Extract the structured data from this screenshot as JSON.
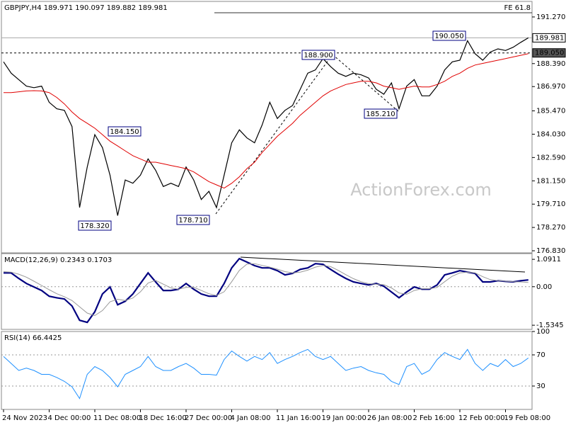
{
  "chart_data": [
    {
      "type": "line",
      "title": "GBPJPY,H4 189.971 190.097 189.882 189.981",
      "watermark": "ActionForex.com",
      "ylim": [
        176.7,
        192.23
      ],
      "yticks": [
        {
          "value": 191.27,
          "label": "191.270"
        },
        {
          "value": 188.39,
          "label": "188.390"
        },
        {
          "value": 186.97,
          "label": "186.970"
        },
        {
          "value": 185.47,
          "label": "185.470"
        },
        {
          "value": 184.03,
          "label": "184.030"
        },
        {
          "value": 182.59,
          "label": "182.590"
        },
        {
          "value": 181.15,
          "label": "181.150"
        },
        {
          "value": 179.71,
          "label": "179.710"
        },
        {
          "value": 178.27,
          "label": "178.270"
        },
        {
          "value": 176.83,
          "label": "176.830"
        }
      ],
      "series": [
        {
          "color": "#000000",
          "values": [
            188.5,
            187.8,
            187.4,
            187.0,
            186.9,
            187.0,
            186.0,
            185.6,
            185.5,
            184.5,
            179.5,
            182.0,
            184.0,
            183.2,
            181.5,
            179.0,
            181.2,
            181.0,
            181.5,
            182.5,
            181.8,
            180.8,
            181.0,
            180.8,
            182.0,
            181.2,
            180.0,
            180.5,
            179.5,
            181.5,
            183.5,
            184.3,
            183.8,
            183.5,
            184.6,
            186.0,
            185.0,
            185.5,
            185.8,
            186.8,
            187.8,
            188.0,
            188.7,
            188.2,
            187.8,
            187.6,
            187.8,
            187.7,
            187.5,
            186.8,
            186.5,
            187.2,
            185.6,
            187.0,
            187.4,
            186.4,
            186.4,
            187.0,
            188.0,
            188.5,
            188.6,
            189.8,
            189.0,
            188.6,
            189.1,
            189.3,
            189.2,
            189.4,
            189.7,
            189.98
          ]
        },
        {
          "color": "#e00000",
          "values": [
            186.6,
            186.6,
            186.65,
            186.7,
            186.72,
            186.7,
            186.6,
            186.3,
            185.9,
            185.4,
            185.0,
            184.7,
            184.4,
            184.0,
            183.6,
            183.3,
            183.0,
            182.7,
            182.5,
            182.3,
            182.3,
            182.2,
            182.1,
            182.0,
            181.9,
            181.7,
            181.4,
            181.1,
            180.9,
            180.7,
            181.0,
            181.4,
            181.9,
            182.3,
            182.9,
            183.4,
            183.9,
            184.3,
            184.7,
            185.2,
            185.6,
            186.0,
            186.4,
            186.7,
            186.9,
            187.1,
            187.2,
            187.3,
            187.3,
            187.2,
            187.0,
            186.9,
            186.8,
            186.9,
            187.0,
            186.95,
            186.95,
            187.1,
            187.3,
            187.6,
            187.8,
            188.1,
            188.3,
            188.4,
            188.5,
            188.6,
            188.7,
            188.8,
            188.9,
            189.0
          ]
        }
      ],
      "price_levels": [
        {
          "value": 189.981,
          "label": "189.981"
        },
        {
          "value": 189.05,
          "label": "189.050"
        }
      ],
      "fe_level": {
        "value": 191.53,
        "label": "FE 61.8"
      },
      "annotations": [
        {
          "value": 190.05,
          "label": "190.050"
        },
        {
          "value": 188.9,
          "label": "188.900"
        },
        {
          "value": 185.21,
          "label": "185.210"
        },
        {
          "value": 184.15,
          "label": "184.150"
        },
        {
          "value": 178.32,
          "label": "178.320"
        },
        {
          "value": 178.71,
          "label": "178.710"
        }
      ]
    },
    {
      "type": "line",
      "title": "MACD(12,26,9) 0.2343 0.1703",
      "ylim": [
        -1.7,
        1.32
      ],
      "yticks": [
        1.0911,
        {
          "value": 0,
          "label": "0.00"
        },
        -1.5345
      ],
      "levels": [
        0
      ],
      "series": [
        {
          "color": "#000080",
          "values": [
            0.55,
            0.55,
            0.33,
            0.13,
            -0.01,
            -0.15,
            -0.38,
            -0.44,
            -0.49,
            -0.77,
            -1.34,
            -1.42,
            -1.0,
            -0.29,
            -0.01,
            -0.72,
            -0.58,
            -0.29,
            0.13,
            0.55,
            0.19,
            -0.15,
            -0.15,
            -0.1,
            0.13,
            -0.1,
            -0.29,
            -0.38,
            -0.38,
            0.13,
            0.75,
            1.12,
            0.98,
            0.84,
            0.75,
            0.75,
            0.64,
            0.47,
            0.53,
            0.69,
            0.75,
            0.92,
            0.89,
            0.69,
            0.5,
            0.33,
            0.19,
            0.13,
            0.07,
            0.13,
            0.02,
            -0.21,
            -0.44,
            -0.21,
            -0.01,
            -0.1,
            -0.1,
            0.07,
            0.47,
            0.55,
            0.64,
            0.58,
            0.53,
            0.19,
            0.19,
            0.24,
            0.21,
            0.19,
            0.24,
            0.27
          ]
        },
        {
          "color": "#999999",
          "values": [
            0.6,
            0.58,
            0.5,
            0.38,
            0.22,
            0.05,
            -0.12,
            -0.28,
            -0.4,
            -0.55,
            -0.8,
            -1.05,
            -1.15,
            -0.95,
            -0.6,
            -0.5,
            -0.55,
            -0.45,
            -0.2,
            0.15,
            0.25,
            0.1,
            -0.05,
            -0.1,
            -0.03,
            -0.02,
            -0.15,
            -0.28,
            -0.35,
            -0.2,
            0.2,
            0.65,
            0.9,
            0.92,
            0.85,
            0.78,
            0.7,
            0.6,
            0.55,
            0.58,
            0.66,
            0.78,
            0.85,
            0.8,
            0.65,
            0.48,
            0.32,
            0.2,
            0.12,
            0.1,
            0.08,
            -0.05,
            -0.25,
            -0.3,
            -0.15,
            -0.08,
            -0.08,
            -0.03,
            0.2,
            0.42,
            0.55,
            0.58,
            0.55,
            0.4,
            0.28,
            0.24,
            0.22,
            0.2,
            0.19,
            0.17
          ]
        }
      ]
    },
    {
      "type": "line",
      "title": "RSI(14) 66.4425",
      "ylim": [
        0,
        100
      ],
      "yticks": [
        100,
        70,
        30
      ],
      "levels": [
        30,
        70
      ],
      "categories": [
        "24 Nov 2023",
        null,
        null,
        null,
        null,
        null,
        "4 Dec 00:00",
        null,
        null,
        null,
        null,
        null,
        "11 Dec 08:00",
        null,
        null,
        null,
        null,
        null,
        "18 Dec 16:00",
        null,
        null,
        null,
        null,
        null,
        "27 Dec 00:00",
        null,
        null,
        null,
        null,
        null,
        "4 Jan 08:00",
        null,
        null,
        null,
        null,
        null,
        "11 Jan 16:00",
        null,
        null,
        null,
        null,
        null,
        "19 Jan 00:00",
        null,
        null,
        null,
        null,
        null,
        "26 Jan 08:00",
        null,
        null,
        null,
        null,
        null,
        "2 Feb 16:00",
        null,
        null,
        null,
        null,
        null,
        "12 Feb 00:00",
        null,
        null,
        null,
        null,
        null,
        "19 Feb 08:00",
        null,
        null,
        null
      ],
      "series": [
        {
          "color": "#1e90ff",
          "values": [
            68,
            59,
            50,
            53,
            50,
            45,
            45,
            41,
            36,
            29,
            14,
            45,
            55,
            50,
            41,
            29,
            45,
            50,
            55,
            68,
            55,
            50,
            50,
            55,
            59,
            53,
            45,
            45,
            44,
            64,
            75,
            68,
            62,
            68,
            64,
            73,
            59,
            64,
            68,
            73,
            77,
            68,
            64,
            68,
            59,
            50,
            53,
            55,
            50,
            47,
            45,
            36,
            32,
            55,
            59,
            45,
            50,
            64,
            73,
            68,
            64,
            77,
            59,
            50,
            59,
            55,
            64,
            55,
            59,
            66
          ]
        }
      ]
    }
  ]
}
